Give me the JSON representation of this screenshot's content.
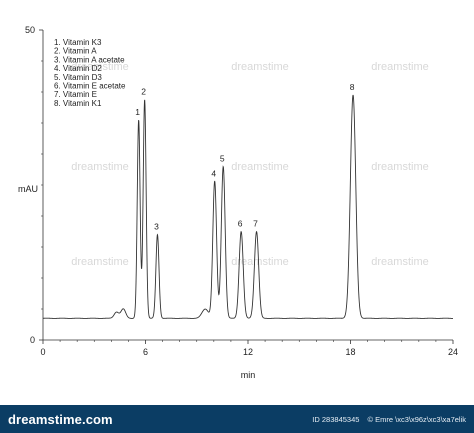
{
  "chart_data": {
    "type": "line",
    "title": "",
    "xlabel": "min",
    "ylabel": "mAU",
    "xlim": [
      0,
      24
    ],
    "ylim": [
      0,
      50
    ],
    "x_ticks": [
      0,
      6,
      12,
      18,
      24
    ],
    "y_ticks": [
      0,
      50
    ],
    "grid": false,
    "legend_position": "top-left",
    "legend_entries": [
      "1. Vitamin K3",
      "2. Vitamin A",
      "3. Vitamin A acetate",
      "4. Vitamin D2",
      "5. Vitamin D3",
      "6. Vitamin E acetate",
      "7. Vitamin E",
      "8. Vitamin K1"
    ],
    "baseline": 3.5,
    "peaks": [
      {
        "label": "1",
        "x": 5.6,
        "y": 35.5
      },
      {
        "label": "2",
        "x": 5.95,
        "y": 38.8
      },
      {
        "label": "3",
        "x": 6.7,
        "y": 17.0
      },
      {
        "label": "4",
        "x": 10.05,
        "y": 25.6
      },
      {
        "label": "5",
        "x": 10.55,
        "y": 28.0
      },
      {
        "label": "6",
        "x": 11.6,
        "y": 17.5
      },
      {
        "label": "7",
        "x": 12.5,
        "y": 17.5
      },
      {
        "label": "8",
        "x": 18.15,
        "y": 39.5
      }
    ],
    "minor_features": [
      {
        "x": 4.3,
        "y": 4.5
      },
      {
        "x": 4.7,
        "y": 5.0
      },
      {
        "x": 9.5,
        "y": 5.0
      }
    ],
    "line_color": "#333333"
  },
  "watermark": "dreamstime",
  "footer": {
    "logo": "dreamstime.com",
    "id_text": "ID 283845345",
    "author": "© Emre \\xc3\\x96z\\xc3\\xa7elik"
  }
}
